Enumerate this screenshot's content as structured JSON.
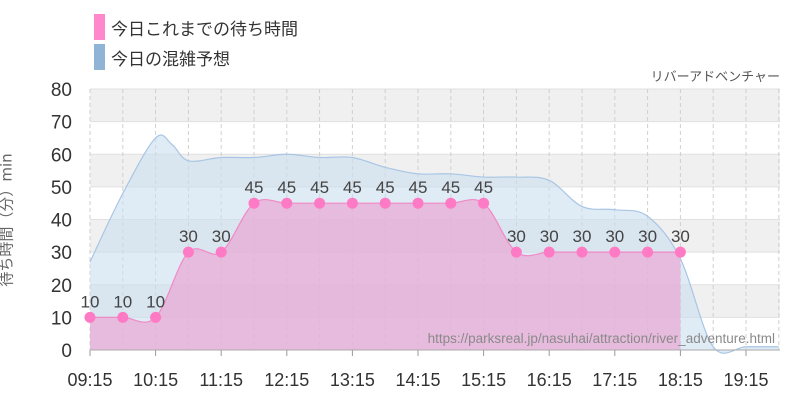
{
  "chart_data": {
    "type": "area",
    "title": "",
    "subtitle": "リバーアドベンチャー",
    "ylabel": "待ち時間（分）min",
    "xlabel": "",
    "ylim": [
      0,
      80
    ],
    "yticks": [
      0,
      10,
      20,
      30,
      40,
      50,
      60,
      70,
      80
    ],
    "xticks": [
      "09:15",
      "10:15",
      "11:15",
      "12:15",
      "13:15",
      "14:15",
      "15:15",
      "16:15",
      "17:15",
      "18:15",
      "19:15"
    ],
    "grid": true,
    "legend_position": "top-left",
    "watermark": "https://parksreal.jp/nasuhai/attraction/river_adventure.html",
    "series": [
      {
        "name": "今日これまでの待ち時間",
        "color": "#ff88cc",
        "x": [
          "09:15",
          "09:45",
          "10:15",
          "10:45",
          "11:15",
          "11:45",
          "12:15",
          "12:45",
          "13:15",
          "13:45",
          "14:15",
          "14:45",
          "15:15",
          "15:45",
          "16:15",
          "16:45",
          "17:15",
          "17:45",
          "18:15"
        ],
        "values": [
          10,
          10,
          10,
          30,
          30,
          45,
          45,
          45,
          45,
          45,
          45,
          45,
          45,
          30,
          30,
          30,
          30,
          30,
          30
        ]
      },
      {
        "name": "今日の混雑予想",
        "color": "#8fb4d6",
        "x": [
          "09:15",
          "09:45",
          "10:15",
          "10:30",
          "10:45",
          "11:15",
          "11:45",
          "12:15",
          "12:45",
          "13:15",
          "13:45",
          "14:15",
          "14:45",
          "15:15",
          "15:45",
          "16:15",
          "16:45",
          "17:15",
          "17:45",
          "18:15",
          "18:45",
          "19:15",
          "19:45"
        ],
        "values": [
          27,
          48,
          65,
          63,
          58,
          59,
          59,
          60,
          59,
          59,
          56,
          54,
          54,
          53,
          53,
          52,
          44,
          43,
          41,
          28,
          1,
          1,
          1
        ]
      }
    ]
  }
}
